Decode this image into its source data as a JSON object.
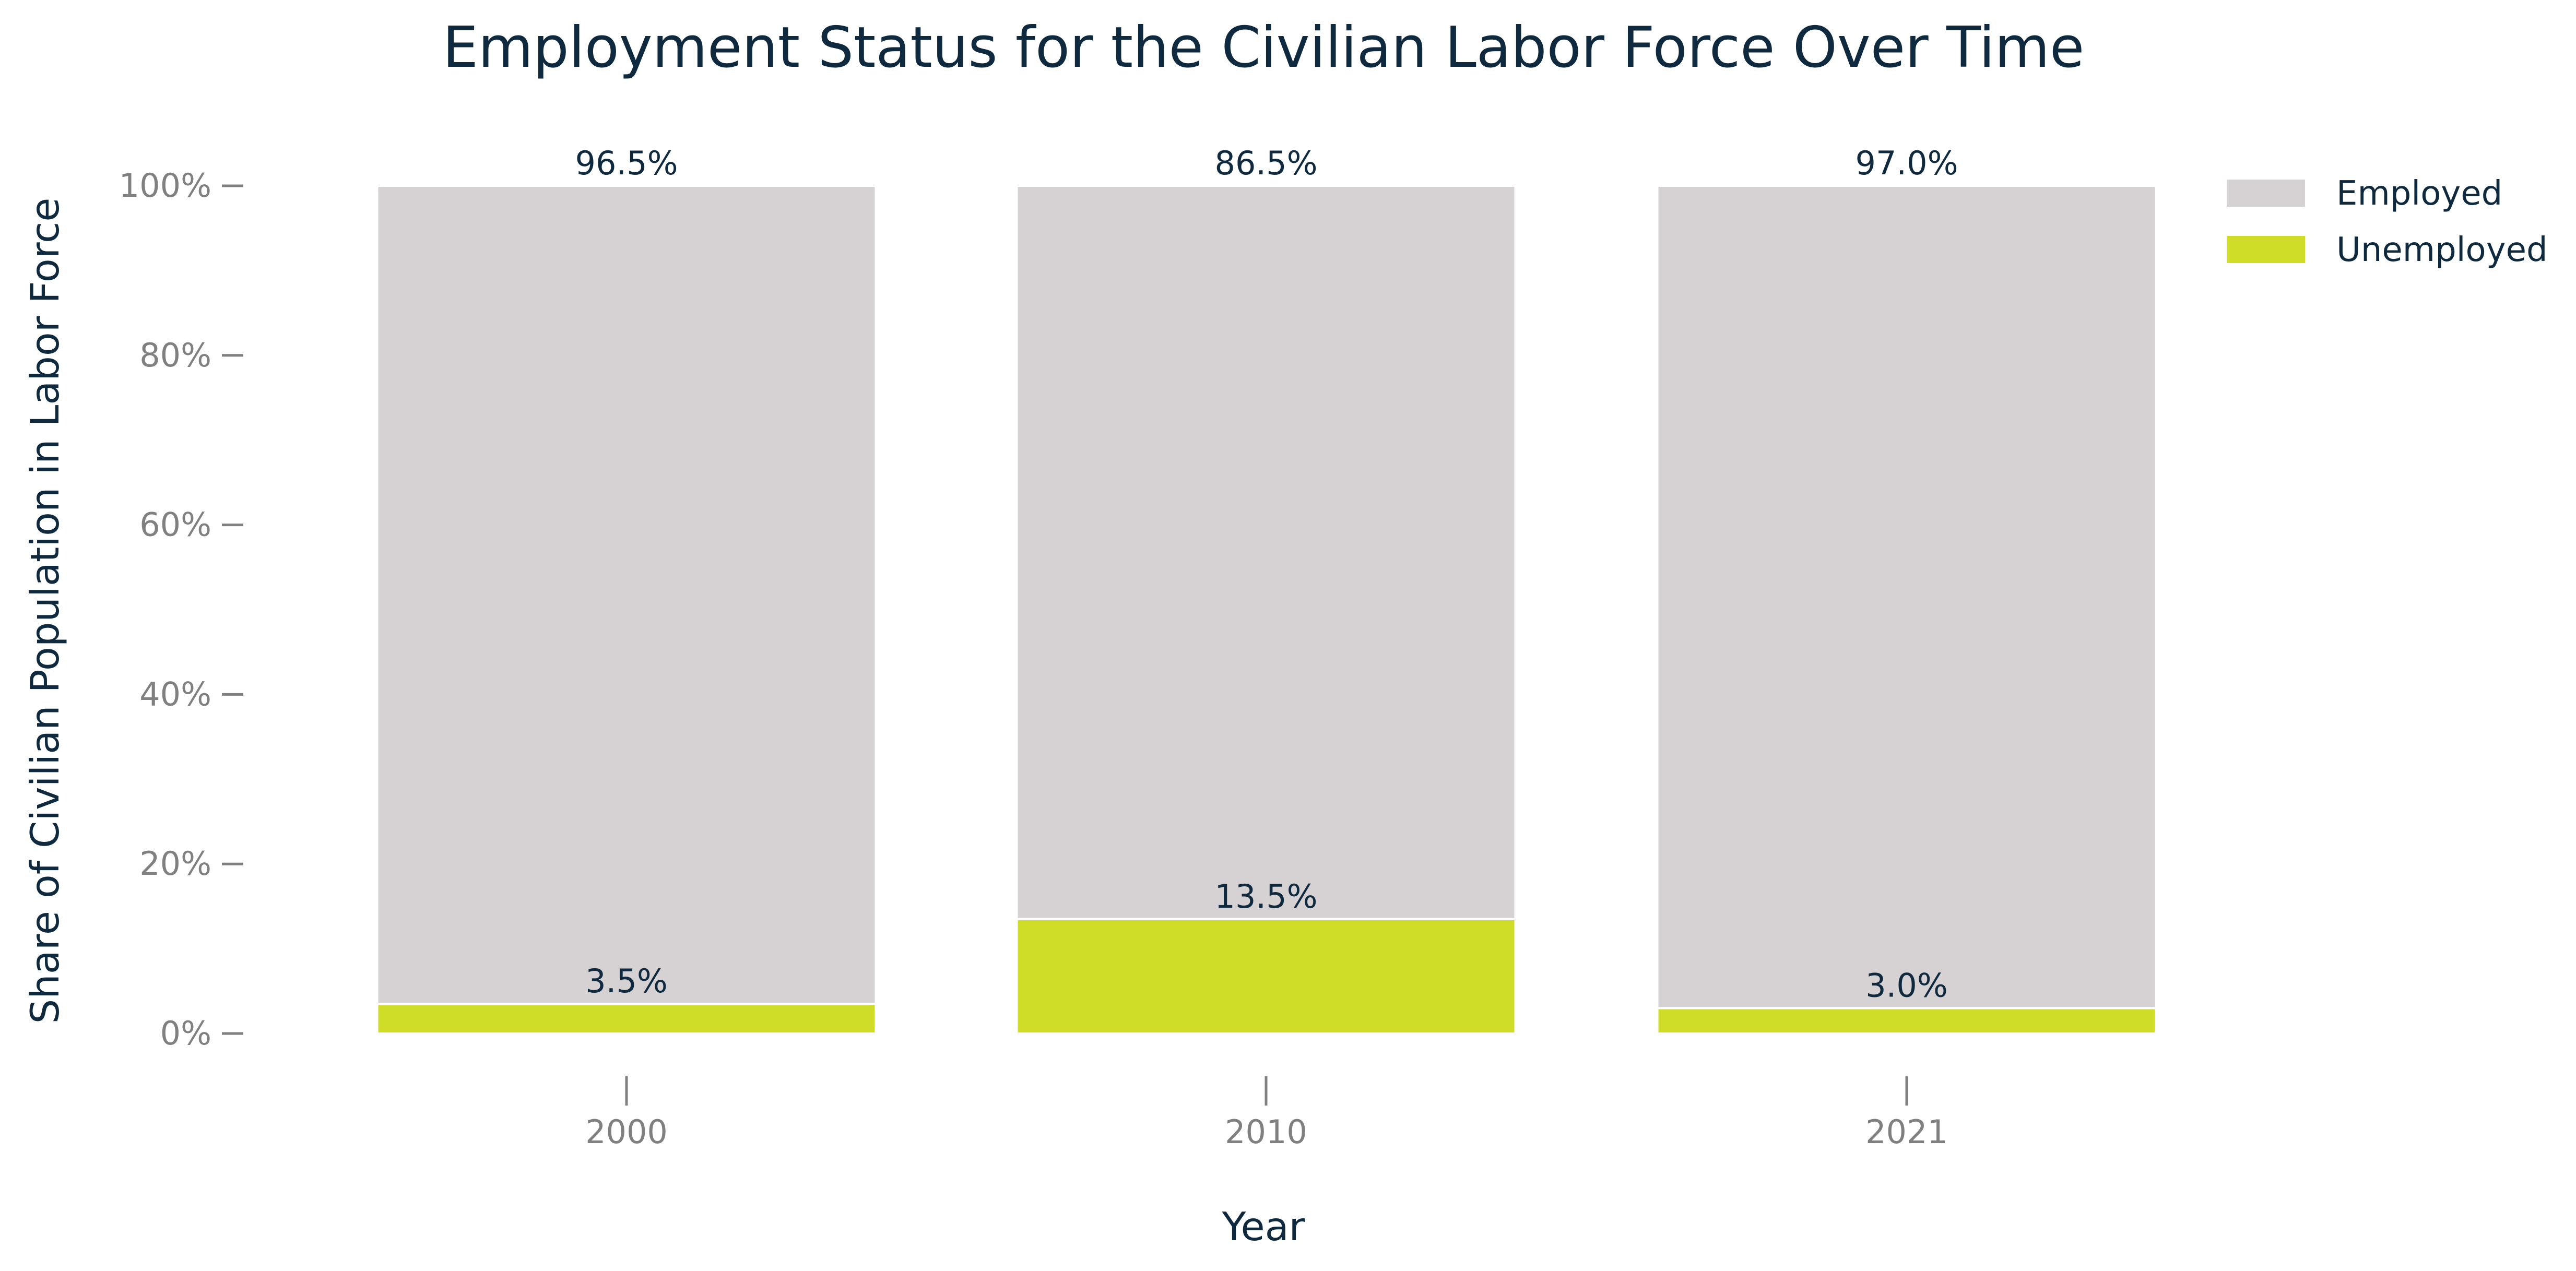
{
  "chart_data": {
    "type": "bar",
    "stacked": true,
    "title": "Employment Status for the Civilian Labor Force Over Time",
    "xlabel": "Year",
    "ylabel": "Share of Civilian Population in Labor Force",
    "categories": [
      "2000",
      "2010",
      "2021"
    ],
    "ylim": [
      0,
      100
    ],
    "yticks": [
      0,
      20,
      40,
      60,
      80,
      100
    ],
    "ytick_labels": [
      "0%",
      "20%",
      "40%",
      "60%",
      "80%",
      "100%"
    ],
    "series": [
      {
        "name": "Unemployed",
        "values": [
          3.5,
          13.5,
          3.0
        ],
        "labels": [
          "3.5%",
          "13.5%",
          "3.0%"
        ],
        "color": "#cfdd29"
      },
      {
        "name": "Employed",
        "values": [
          96.5,
          86.5,
          97.0
        ],
        "labels": [
          "96.5%",
          "86.5%",
          "97.0%"
        ],
        "color": "#d6d1d3"
      }
    ],
    "legend_order": [
      "Employed",
      "Unemployed"
    ],
    "legend_position": "top-right",
    "grid": false
  }
}
